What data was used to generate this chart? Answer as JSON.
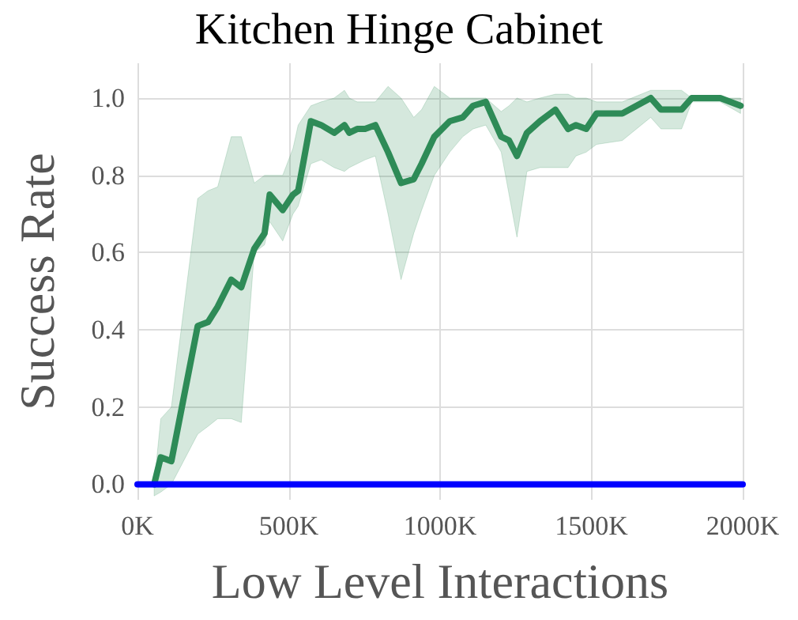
{
  "chart_data": {
    "type": "line",
    "title": "Kitchen Hinge Cabinet",
    "xlabel": "Low Level Interactions",
    "ylabel": "Success Rate",
    "xlim": [
      0,
      2000
    ],
    "xticks": [
      {
        "value": 0,
        "label": "0K"
      },
      {
        "value": 500,
        "label": "500K"
      },
      {
        "value": 1000,
        "label": "1000K"
      },
      {
        "value": 1500,
        "label": "1500K"
      },
      {
        "value": 2000,
        "label": "2000K"
      }
    ],
    "ylim": [
      -0.04,
      1.09
    ],
    "yticks": [
      {
        "value": 0,
        "label": "0.0"
      },
      {
        "value": 0.2,
        "label": "0.2"
      },
      {
        "value": 0.4,
        "label": "0.4"
      },
      {
        "value": 0.6,
        "label": "0.6"
      },
      {
        "value": 0.8,
        "label": "0.8"
      },
      {
        "value": 1,
        "label": "1.0"
      }
    ],
    "grid": true,
    "marker": "none",
    "line_style": "solid",
    "series": [
      {
        "color": "#2e8b57",
        "x": [
          55,
          77,
          112,
          199,
          233,
          265,
          310,
          343,
          386,
          420,
          437,
          480,
          514,
          531,
          573,
          607,
          650,
          684,
          700,
          726,
          752,
          786,
          828,
          871,
          913,
          939,
          981,
          1032,
          1075,
          1109,
          1151,
          1202,
          1228,
          1254,
          1287,
          1330,
          1381,
          1423,
          1449,
          1483,
          1517,
          1602,
          1696,
          1730,
          1798,
          1832,
          1926,
          1993
        ],
        "values": [
          0,
          0.07,
          0.06,
          0.41,
          0.42,
          0.46,
          0.53,
          0.51,
          0.61,
          0.65,
          0.75,
          0.71,
          0.75,
          0.76,
          0.94,
          0.93,
          0.91,
          0.93,
          0.91,
          0.92,
          0.92,
          0.93,
          0.86,
          0.78,
          0.79,
          0.83,
          0.9,
          0.94,
          0.95,
          0.98,
          0.99,
          0.9,
          0.89,
          0.85,
          0.91,
          0.94,
          0.97,
          0.92,
          0.93,
          0.92,
          0.96,
          0.96,
          1.0,
          0.97,
          0.97,
          1.0,
          1.0,
          0.98
        ],
        "lower": [
          -0.03,
          -0.02,
          0.0,
          0.13,
          0.15,
          0.17,
          0.17,
          0.16,
          0.6,
          0.62,
          0.68,
          0.63,
          0.7,
          0.72,
          0.83,
          0.84,
          0.82,
          0.81,
          0.82,
          0.83,
          0.84,
          0.85,
          0.7,
          0.53,
          0.65,
          0.71,
          0.8,
          0.86,
          0.9,
          0.92,
          0.93,
          0.86,
          0.75,
          0.64,
          0.81,
          0.82,
          0.82,
          0.82,
          0.85,
          0.86,
          0.88,
          0.89,
          0.95,
          0.92,
          0.92,
          0.99,
          0.99,
          0.96
        ],
        "upper": [
          0.0,
          0.17,
          0.2,
          0.74,
          0.76,
          0.77,
          0.9,
          0.9,
          0.78,
          0.8,
          0.8,
          0.8,
          0.87,
          0.93,
          0.98,
          0.99,
          1.0,
          1.02,
          1.0,
          0.99,
          0.99,
          0.99,
          1.03,
          1.0,
          0.95,
          0.97,
          1.03,
          1.0,
          1.0,
          1.0,
          1.0,
          0.965,
          0.98,
          1.0,
          0.99,
          1.0,
          1.01,
          1.01,
          1.0,
          1.0,
          0.99,
          0.99,
          1.02,
          1.02,
          1.02,
          1.0,
          1.0,
          1.0
        ]
      },
      {
        "color": "#0000ff",
        "x": [
          0,
          2000
        ],
        "values": [
          0,
          0
        ]
      }
    ]
  }
}
